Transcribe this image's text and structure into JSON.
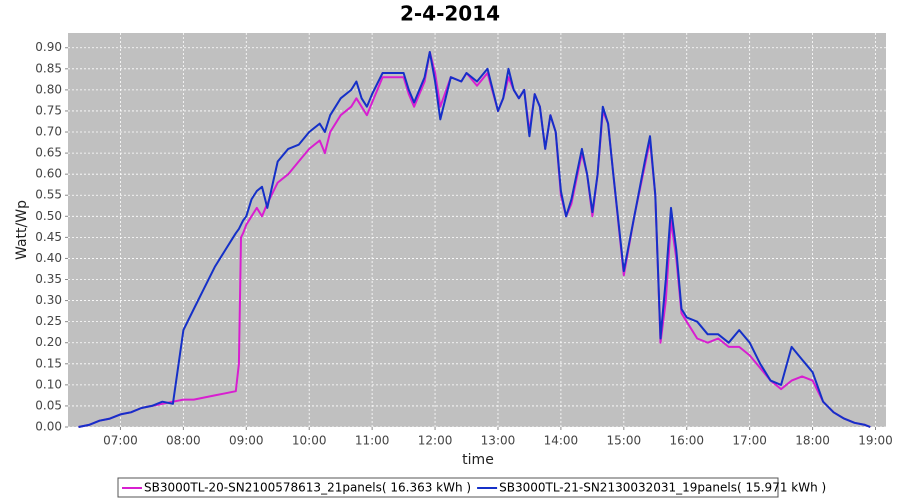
{
  "chart_data": {
    "type": "line",
    "title": "2-4-2014",
    "x_label": "time",
    "y_label": "Watt/Wp",
    "x": [
      "06:20",
      "06:30",
      "06:40",
      "06:50",
      "07:00",
      "07:10",
      "07:20",
      "07:30",
      "07:40",
      "07:50",
      "08:00",
      "08:10",
      "08:20",
      "08:30",
      "08:40",
      "08:50",
      "08:53",
      "08:55",
      "08:57",
      "09:00",
      "09:05",
      "09:10",
      "09:15",
      "09:20",
      "09:30",
      "09:40",
      "09:50",
      "10:00",
      "10:10",
      "10:15",
      "10:20",
      "10:30",
      "10:40",
      "10:45",
      "10:50",
      "10:55",
      "11:00",
      "11:10",
      "11:20",
      "11:30",
      "11:35",
      "11:40",
      "11:50",
      "11:55",
      "12:00",
      "12:05",
      "12:15",
      "12:25",
      "12:30",
      "12:40",
      "12:50",
      "13:00",
      "13:05",
      "13:10",
      "13:15",
      "13:20",
      "13:25",
      "13:30",
      "13:35",
      "13:40",
      "13:45",
      "13:50",
      "13:55",
      "14:00",
      "14:05",
      "14:10",
      "14:20",
      "14:25",
      "14:30",
      "14:35",
      "14:40",
      "14:45",
      "14:50",
      "15:00",
      "15:10",
      "15:20",
      "15:25",
      "15:30",
      "15:35",
      "15:40",
      "15:45",
      "15:50",
      "15:55",
      "16:00",
      "16:10",
      "16:20",
      "16:30",
      "16:40",
      "16:50",
      "17:00",
      "17:10",
      "17:20",
      "17:30",
      "17:40",
      "17:50",
      "18:00",
      "18:10",
      "18:20",
      "18:30",
      "18:40",
      "18:50",
      "18:55"
    ],
    "series": [
      {
        "name": "SB3000TL-20-SN2100578613_21panels( 16.363 kWh )",
        "color": "#d81fd0",
        "values": [
          0,
          0.005,
          0.015,
          0.02,
          0.03,
          0.035,
          0.045,
          0.05,
          0.055,
          0.06,
          0.065,
          0.065,
          0.07,
          0.075,
          0.08,
          0.085,
          0.15,
          0.45,
          0.46,
          0.48,
          0.5,
          0.52,
          0.5,
          0.53,
          0.58,
          0.6,
          0.63,
          0.66,
          0.68,
          0.65,
          0.7,
          0.74,
          0.76,
          0.78,
          0.76,
          0.74,
          0.77,
          0.83,
          0.83,
          0.83,
          0.79,
          0.76,
          0.82,
          0.89,
          0.84,
          0.76,
          0.83,
          0.82,
          0.84,
          0.81,
          0.84,
          0.75,
          0.78,
          0.83,
          0.8,
          0.78,
          0.8,
          0.7,
          0.79,
          0.76,
          0.66,
          0.74,
          0.7,
          0.55,
          0.5,
          0.53,
          0.65,
          0.6,
          0.5,
          0.6,
          0.75,
          0.72,
          0.6,
          0.36,
          0.5,
          0.62,
          0.68,
          0.55,
          0.2,
          0.3,
          0.49,
          0.4,
          0.27,
          0.25,
          0.21,
          0.2,
          0.21,
          0.19,
          0.19,
          0.17,
          0.14,
          0.11,
          0.09,
          0.11,
          0.12,
          0.11,
          0.06,
          0.035,
          0.02,
          0.01,
          0.005,
          0
        ]
      },
      {
        "name": "SB3000TL-21-SN2130032031_19panels( 15.971 kWh )",
        "color": "#1530c8",
        "values": [
          0,
          0.005,
          0.015,
          0.02,
          0.03,
          0.035,
          0.045,
          0.05,
          0.06,
          0.055,
          0.23,
          0.28,
          0.33,
          0.38,
          0.42,
          0.46,
          0.47,
          0.48,
          0.49,
          0.5,
          0.54,
          0.56,
          0.57,
          0.52,
          0.63,
          0.66,
          0.67,
          0.7,
          0.72,
          0.7,
          0.74,
          0.78,
          0.8,
          0.82,
          0.78,
          0.76,
          0.79,
          0.84,
          0.84,
          0.84,
          0.8,
          0.77,
          0.83,
          0.89,
          0.82,
          0.73,
          0.83,
          0.82,
          0.84,
          0.82,
          0.85,
          0.75,
          0.78,
          0.85,
          0.8,
          0.78,
          0.8,
          0.69,
          0.79,
          0.76,
          0.66,
          0.74,
          0.7,
          0.56,
          0.5,
          0.54,
          0.66,
          0.6,
          0.51,
          0.6,
          0.76,
          0.72,
          0.6,
          0.37,
          0.5,
          0.63,
          0.69,
          0.55,
          0.21,
          0.35,
          0.52,
          0.42,
          0.28,
          0.26,
          0.25,
          0.22,
          0.22,
          0.2,
          0.23,
          0.2,
          0.15,
          0.11,
          0.1,
          0.19,
          0.16,
          0.13,
          0.06,
          0.035,
          0.02,
          0.01,
          0.005,
          0
        ]
      }
    ],
    "xlim": [
      "06:10",
      "19:10"
    ],
    "xticks": [
      "07:00",
      "08:00",
      "09:00",
      "10:00",
      "11:00",
      "12:00",
      "13:00",
      "14:00",
      "15:00",
      "16:00",
      "17:00",
      "18:00",
      "19:00"
    ],
    "ylim": [
      0,
      0.935
    ],
    "yticks": [
      {
        "value": 0,
        "label": "0.00"
      },
      {
        "value": 0.05,
        "label": "0.05"
      },
      {
        "value": 0.1,
        "label": "0.10"
      },
      {
        "value": 0.15,
        "label": "0.15"
      },
      {
        "value": 0.2,
        "label": "0.20"
      },
      {
        "value": 0.25,
        "label": "0.25"
      },
      {
        "value": 0.3,
        "label": "0.30"
      },
      {
        "value": 0.35,
        "label": "0.35"
      },
      {
        "value": 0.4,
        "label": "0.40"
      },
      {
        "value": 0.45,
        "label": "0.45"
      },
      {
        "value": 0.5,
        "label": "0.50"
      },
      {
        "value": 0.55,
        "label": "0.55"
      },
      {
        "value": 0.6,
        "label": "0.60"
      },
      {
        "value": 0.65,
        "label": "0.65"
      },
      {
        "value": 0.7,
        "label": "0.70"
      },
      {
        "value": 0.75,
        "label": "0.75"
      },
      {
        "value": 0.8,
        "label": "0.80"
      },
      {
        "value": 0.85,
        "label": "0.85"
      },
      {
        "value": 0.9,
        "label": "0.90"
      }
    ],
    "grid": true,
    "legend_position": "bottom"
  }
}
